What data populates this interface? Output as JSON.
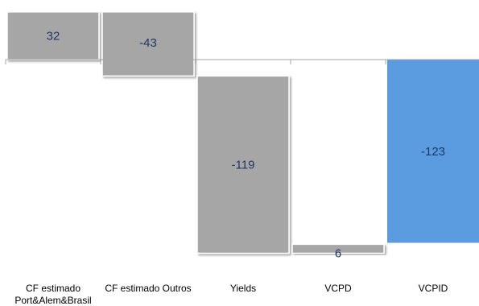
{
  "chart_data": {
    "type": "bar",
    "subtype": "waterfall",
    "title": "",
    "xlabel": "",
    "ylabel": "",
    "categories": [
      [
        "CF estimado",
        "Port&Alem&Brasil"
      ],
      [
        "CF estimado  Outros"
      ],
      [
        "Yields"
      ],
      [
        "VCPD"
      ],
      [
        "VCPID"
      ]
    ],
    "values": [
      32,
      -43,
      -119,
      6,
      -123
    ],
    "value_labels": [
      "32",
      "-43",
      "-119",
      "6",
      "-123"
    ],
    "bar_kinds": [
      "step",
      "step",
      "step",
      "step",
      "total"
    ],
    "colors": {
      "step": "#a6a6a6",
      "total": "#5b9be0",
      "axis": "#a6a6a6",
      "label": "#1f3864"
    },
    "grid": false,
    "legend": "none"
  }
}
